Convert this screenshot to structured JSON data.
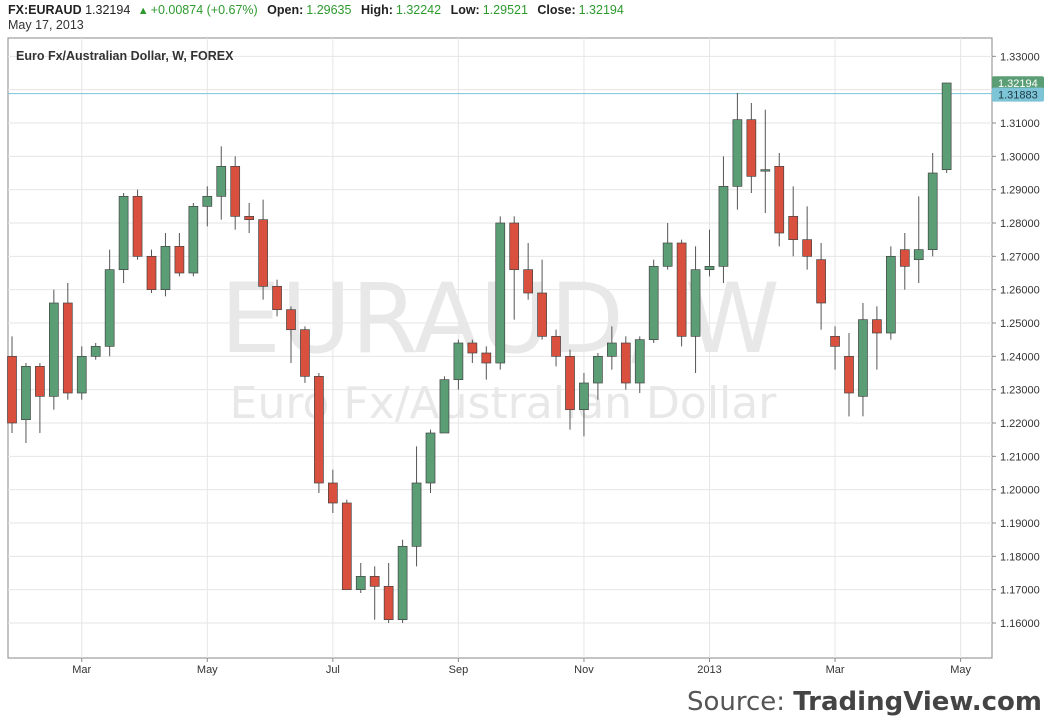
{
  "header": {
    "symbol": "FX:EURAUD",
    "last": "1.32194",
    "change": "+0.00874 (+0.67%)",
    "open_label": "Open:",
    "open": "1.29635",
    "high_label": "High:",
    "high": "1.32242",
    "low_label": "Low:",
    "low": "1.29521",
    "close_label": "Close:",
    "close": "1.32194",
    "date": "May 17, 2013"
  },
  "colors": {
    "up": "#5b9e76",
    "down": "#d9503f",
    "grid": "#e6e6e6",
    "price_line": "#7cc4d6",
    "last_tag": "#5b9e76"
  },
  "source": {
    "prefix": "Source:",
    "brand": "TradingView.com"
  },
  "chart_data": {
    "type": "candlestick",
    "title": "Euro Fx/Australian Dollar, W, FOREX",
    "watermark_symbol": "EURAUD, W",
    "watermark_name": "Euro Fx/Australian Dollar",
    "interval": "W",
    "ylim": [
      1.1495,
      1.3355
    ],
    "y_ticks": [
      "1.16000",
      "1.17000",
      "1.18000",
      "1.19000",
      "1.20000",
      "1.21000",
      "1.22000",
      "1.23000",
      "1.24000",
      "1.25000",
      "1.26000",
      "1.27000",
      "1.28000",
      "1.29000",
      "1.30000",
      "1.31000",
      "1.32000",
      "1.33000"
    ],
    "x_ticks": [
      {
        "label": "Mar",
        "index": 5
      },
      {
        "label": "May",
        "index": 14
      },
      {
        "label": "Jul",
        "index": 23
      },
      {
        "label": "Sep",
        "index": 32
      },
      {
        "label": "Nov",
        "index": 41
      },
      {
        "label": "2013",
        "index": 50
      },
      {
        "label": "Mar",
        "index": 59
      },
      {
        "label": "May",
        "index": 68
      }
    ],
    "horizontal_line": "1.31883",
    "last_price": "1.32194",
    "grid": true,
    "candles": [
      [
        1.24,
        1.246,
        1.217,
        1.22
      ],
      [
        1.221,
        1.238,
        1.214,
        1.237
      ],
      [
        1.237,
        1.238,
        1.217,
        1.228
      ],
      [
        1.228,
        1.26,
        1.224,
        1.256
      ],
      [
        1.256,
        1.262,
        1.227,
        1.229
      ],
      [
        1.229,
        1.243,
        1.227,
        1.24
      ],
      [
        1.24,
        1.244,
        1.239,
        1.243
      ],
      [
        1.243,
        1.272,
        1.24,
        1.266
      ],
      [
        1.266,
        1.289,
        1.262,
        1.288
      ],
      [
        1.288,
        1.29,
        1.269,
        1.27
      ],
      [
        1.27,
        1.272,
        1.259,
        1.26
      ],
      [
        1.26,
        1.277,
        1.258,
        1.273
      ],
      [
        1.273,
        1.277,
        1.264,
        1.265
      ],
      [
        1.265,
        1.286,
        1.264,
        1.285
      ],
      [
        1.285,
        1.291,
        1.279,
        1.288
      ],
      [
        1.288,
        1.303,
        1.281,
        1.297
      ],
      [
        1.297,
        1.3,
        1.278,
        1.282
      ],
      [
        1.282,
        1.286,
        1.277,
        1.281
      ],
      [
        1.281,
        1.287,
        1.257,
        1.261
      ],
      [
        1.261,
        1.263,
        1.252,
        1.254
      ],
      [
        1.254,
        1.255,
        1.238,
        1.248
      ],
      [
        1.248,
        1.249,
        1.232,
        1.234
      ],
      [
        1.234,
        1.235,
        1.199,
        1.202
      ],
      [
        1.202,
        1.206,
        1.193,
        1.196
      ],
      [
        1.196,
        1.197,
        1.17,
        1.17
      ],
      [
        1.17,
        1.178,
        1.169,
        1.174
      ],
      [
        1.174,
        1.177,
        1.161,
        1.171
      ],
      [
        1.171,
        1.178,
        1.16,
        1.161
      ],
      [
        1.161,
        1.185,
        1.16,
        1.183
      ],
      [
        1.183,
        1.213,
        1.177,
        1.202
      ],
      [
        1.202,
        1.218,
        1.199,
        1.217
      ],
      [
        1.217,
        1.234,
        1.217,
        1.233
      ],
      [
        1.233,
        1.245,
        1.23,
        1.244
      ],
      [
        1.244,
        1.245,
        1.238,
        1.241
      ],
      [
        1.241,
        1.243,
        1.233,
        1.238
      ],
      [
        1.238,
        1.282,
        1.236,
        1.28
      ],
      [
        1.28,
        1.282,
        1.251,
        1.266
      ],
      [
        1.266,
        1.274,
        1.257,
        1.259
      ],
      [
        1.259,
        1.269,
        1.245,
        1.246
      ],
      [
        1.246,
        1.248,
        1.237,
        1.24
      ],
      [
        1.24,
        1.242,
        1.218,
        1.224
      ],
      [
        1.224,
        1.235,
        1.216,
        1.232
      ],
      [
        1.232,
        1.241,
        1.227,
        1.24
      ],
      [
        1.24,
        1.249,
        1.236,
        1.244
      ],
      [
        1.244,
        1.246,
        1.23,
        1.232
      ],
      [
        1.232,
        1.246,
        1.229,
        1.245
      ],
      [
        1.245,
        1.269,
        1.244,
        1.267
      ],
      [
        1.267,
        1.28,
        1.266,
        1.274
      ],
      [
        1.274,
        1.275,
        1.243,
        1.246
      ],
      [
        1.246,
        1.273,
        1.235,
        1.266
      ],
      [
        1.266,
        1.278,
        1.264,
        1.267
      ],
      [
        1.267,
        1.3,
        1.262,
        1.291
      ],
      [
        1.291,
        1.319,
        1.284,
        1.311
      ],
      [
        1.311,
        1.316,
        1.289,
        1.294
      ],
      [
        1.296,
        1.314,
        1.283,
        1.296
      ],
      [
        1.297,
        1.301,
        1.273,
        1.277
      ],
      [
        1.282,
        1.291,
        1.27,
        1.275
      ],
      [
        1.275,
        1.285,
        1.266,
        1.27
      ],
      [
        1.269,
        1.274,
        1.248,
        1.256
      ],
      [
        1.246,
        1.249,
        1.236,
        1.243
      ],
      [
        1.24,
        1.247,
        1.222,
        1.229
      ],
      [
        1.228,
        1.256,
        1.222,
        1.251
      ],
      [
        1.251,
        1.255,
        1.236,
        1.247
      ],
      [
        1.247,
        1.273,
        1.245,
        1.27
      ],
      [
        1.272,
        1.277,
        1.26,
        1.267
      ],
      [
        1.269,
        1.288,
        1.262,
        1.272
      ],
      [
        1.272,
        1.301,
        1.27,
        1.295
      ],
      [
        1.296,
        1.322,
        1.295,
        1.322
      ]
    ]
  }
}
